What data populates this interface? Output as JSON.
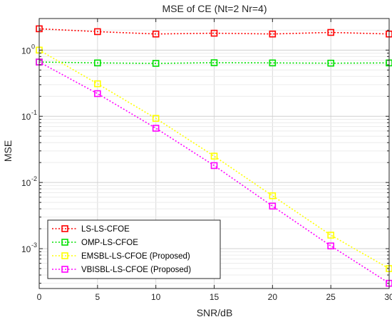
{
  "chart_data": {
    "type": "line",
    "title": "MSE of CE (Nt=2 Nr=4)",
    "xlabel": "SNR/dB",
    "ylabel": "MSE",
    "y_scale": "log",
    "xlim": [
      0,
      30
    ],
    "ylim": [
      0.00025,
      3
    ],
    "x_ticks": [
      "0",
      "5",
      "10",
      "15",
      "20",
      "25",
      "30"
    ],
    "y_ticks": [
      {
        "base": "10",
        "exp": "-3",
        "value": 0.001
      },
      {
        "base": "10",
        "exp": "-2",
        "value": 0.01
      },
      {
        "base": "10",
        "exp": "-1",
        "value": 0.1
      },
      {
        "base": "10",
        "exp": "0",
        "value": 1
      }
    ],
    "grid": true,
    "legend_position": "bottom-left",
    "x": [
      0,
      5,
      10,
      15,
      20,
      25,
      30
    ],
    "series": [
      {
        "name": "LS-LS-CFOE",
        "color": "#ff0000",
        "values": [
          2.1,
          1.9,
          1.75,
          1.8,
          1.75,
          1.85,
          1.75
        ]
      },
      {
        "name": "OMP-LS-CFOE",
        "color": "#00e000",
        "values": [
          0.66,
          0.64,
          0.63,
          0.645,
          0.64,
          0.635,
          0.64
        ]
      },
      {
        "name": "EMSBL-LS-CFOE (Proposed)",
        "color": "#ffff00",
        "values": [
          1.0,
          0.31,
          0.093,
          0.025,
          0.0063,
          0.0016,
          0.0005
        ]
      },
      {
        "name": "VBISBL-LS-CFOE (Proposed)",
        "color": "#ff00ff",
        "values": [
          0.66,
          0.22,
          0.066,
          0.018,
          0.0044,
          0.0011,
          0.0003
        ]
      }
    ]
  }
}
